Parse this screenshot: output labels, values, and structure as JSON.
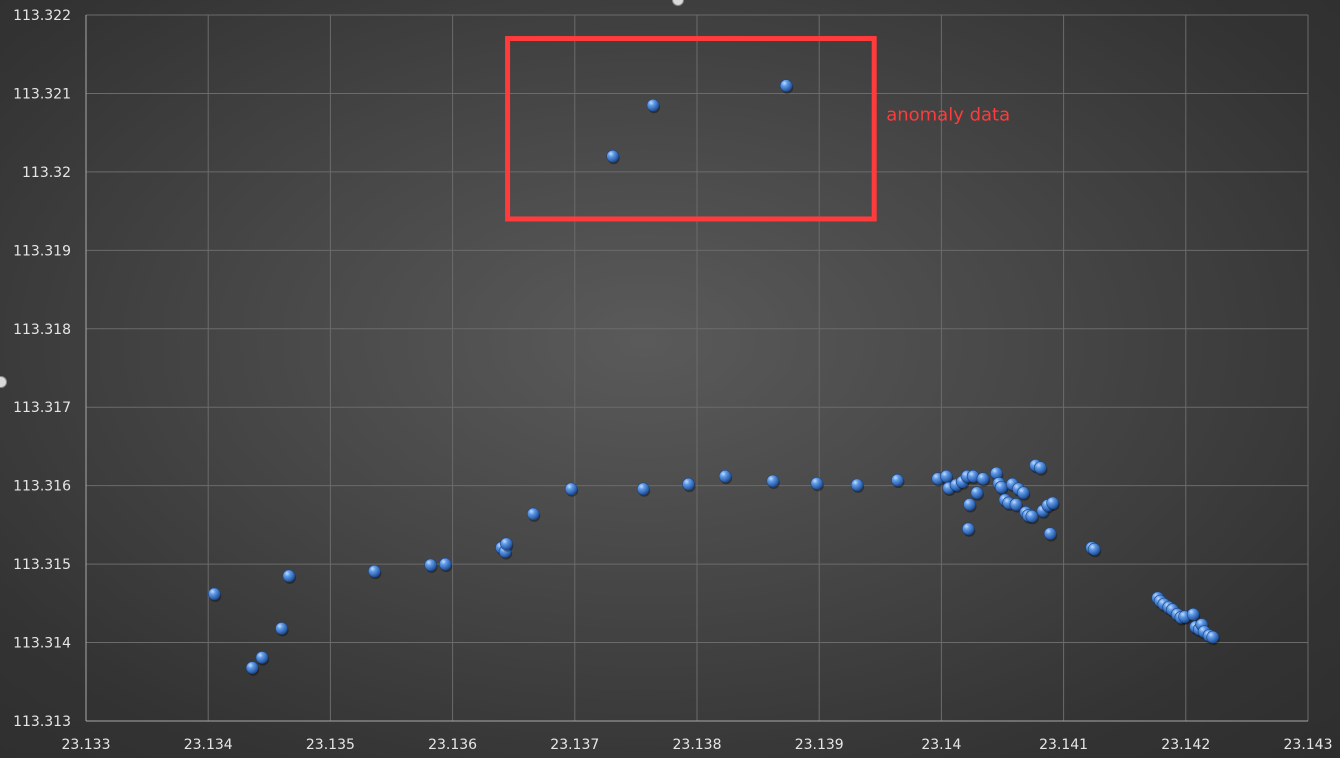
{
  "chart_data": {
    "type": "scatter",
    "title": "",
    "xlabel": "",
    "ylabel": "",
    "xlim": [
      23.133,
      23.143
    ],
    "ylim": [
      113.313,
      113.322
    ],
    "xticks": [
      "23.133",
      "23.134",
      "23.135",
      "23.136",
      "23.137",
      "23.138",
      "23.139",
      "23.14",
      "23.141",
      "23.142",
      "23.143"
    ],
    "yticks": [
      "113.313",
      "113.314",
      "113.315",
      "113.316",
      "113.317",
      "113.318",
      "113.319",
      "113.32",
      "113.321",
      "113.322"
    ],
    "grid": true,
    "marker_color": "#3d7fd6",
    "series": [
      {
        "points": [
          [
            23.13405,
            113.31462
          ],
          [
            23.13436,
            113.31368
          ],
          [
            23.13444,
            113.31381
          ],
          [
            23.1346,
            113.31418
          ],
          [
            23.13466,
            113.31485
          ],
          [
            23.13536,
            113.31491
          ],
          [
            23.13582,
            113.31499
          ],
          [
            23.13594,
            113.315
          ],
          [
            23.1364,
            113.31521
          ],
          [
            23.13643,
            113.31516
          ],
          [
            23.13644,
            113.31526
          ],
          [
            23.13666,
            113.31564
          ],
          [
            23.13697,
            113.31596
          ],
          [
            23.13756,
            113.31596
          ],
          [
            23.13793,
            113.31602
          ],
          [
            23.13823,
            113.31612
          ],
          [
            23.13862,
            113.31606
          ],
          [
            23.13898,
            113.31603
          ],
          [
            23.13931,
            113.31601
          ],
          [
            23.13964,
            113.31607
          ],
          [
            23.13997,
            113.31609
          ],
          [
            23.14004,
            113.31612
          ],
          [
            23.14006,
            113.31597
          ],
          [
            23.14012,
            113.31601
          ],
          [
            23.14017,
            113.31605
          ],
          [
            23.14021,
            113.31612
          ],
          [
            23.14022,
            113.31545
          ],
          [
            23.14023,
            113.31576
          ],
          [
            23.14026,
            113.31612
          ],
          [
            23.14029,
            113.31591
          ],
          [
            23.14034,
            113.31609
          ],
          [
            23.14045,
            113.31616
          ],
          [
            23.14047,
            113.31603
          ],
          [
            23.14049,
            113.31598
          ],
          [
            23.14052,
            113.31582
          ],
          [
            23.14055,
            113.31578
          ],
          [
            23.14058,
            113.31602
          ],
          [
            23.14061,
            113.31576
          ],
          [
            23.14063,
            113.31596
          ],
          [
            23.14067,
            113.31591
          ],
          [
            23.14069,
            113.31566
          ],
          [
            23.14071,
            113.31562
          ],
          [
            23.14074,
            113.31561
          ],
          [
            23.14077,
            113.31626
          ],
          [
            23.14081,
            113.31623
          ],
          [
            23.14083,
            113.31568
          ],
          [
            23.14087,
            113.31575
          ],
          [
            23.14089,
            113.31539
          ],
          [
            23.14091,
            113.31578
          ],
          [
            23.14123,
            113.31521
          ],
          [
            23.14125,
            113.31519
          ],
          [
            23.14177,
            113.31457
          ],
          [
            23.14179,
            113.31453
          ],
          [
            23.14182,
            113.31449
          ],
          [
            23.14186,
            113.31445
          ],
          [
            23.14189,
            113.31442
          ],
          [
            23.14193,
            113.31436
          ],
          [
            23.14196,
            113.31432
          ],
          [
            23.14199,
            113.31433
          ],
          [
            23.14206,
            113.31436
          ],
          [
            23.14208,
            113.3142
          ],
          [
            23.14211,
            113.31417
          ],
          [
            23.14213,
            113.31423
          ],
          [
            23.14215,
            113.31414
          ],
          [
            23.14219,
            113.31409
          ],
          [
            23.14222,
            113.31407
          ],
          [
            23.13731,
            113.3202
          ],
          [
            23.13764,
            113.32085
          ],
          [
            23.13873,
            113.3211
          ]
        ]
      }
    ],
    "annotation": {
      "label": "anomaly data",
      "color": "#ff3b3b",
      "x_range": [
        23.13645,
        23.13945
      ],
      "y_range": [
        113.3194,
        113.3217
      ]
    }
  }
}
